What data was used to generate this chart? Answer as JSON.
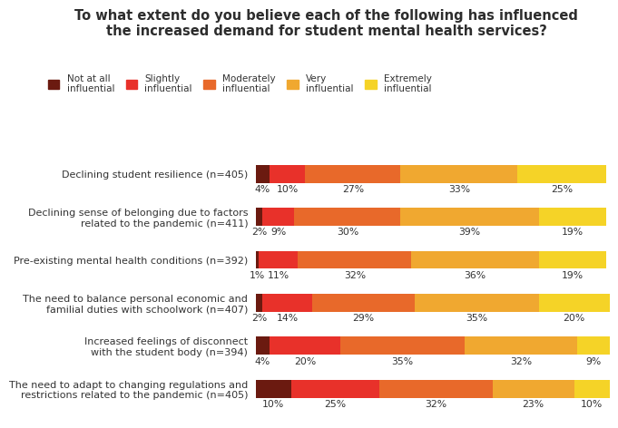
{
  "title_line1": "To what extent do you believe each of the following has influenced",
  "title_line2": "the increased demand for student mental health services?",
  "categories": [
    "Declining student resilience (n=405)",
    "Declining sense of belonging due to factors\nrelated to the pandemic (n=411)",
    "Pre-existing mental health conditions (n=392)",
    "The need to balance personal economic and\nfamilial duties with schoolwork (n=407)",
    "Increased feelings of disconnect\nwith the student body (n=394)",
    "The need to adapt to changing regulations and\nrestrictions related to the pandemic (n=405)"
  ],
  "data": [
    [
      4,
      10,
      27,
      33,
      25
    ],
    [
      2,
      9,
      30,
      39,
      19
    ],
    [
      1,
      11,
      32,
      36,
      19
    ],
    [
      2,
      14,
      29,
      35,
      20
    ],
    [
      4,
      20,
      35,
      32,
      9
    ],
    [
      10,
      25,
      32,
      23,
      10
    ]
  ],
  "colors": [
    "#6b1a10",
    "#e8312a",
    "#e8692a",
    "#f0a830",
    "#f5d327"
  ],
  "legend_labels": [
    "Not at all\ninfluential",
    "Slightly\ninfluential",
    "Moderately\ninfluential",
    "Very\ninfluential",
    "Extremely\ninfluential"
  ],
  "title_color": "#2d2d2d",
  "bar_height": 0.42,
  "background_color": "#ffffff",
  "label_fontsize": 7.8,
  "ytick_fontsize": 8.0,
  "legend_fontsize": 7.5,
  "title_fontsize": 10.5
}
